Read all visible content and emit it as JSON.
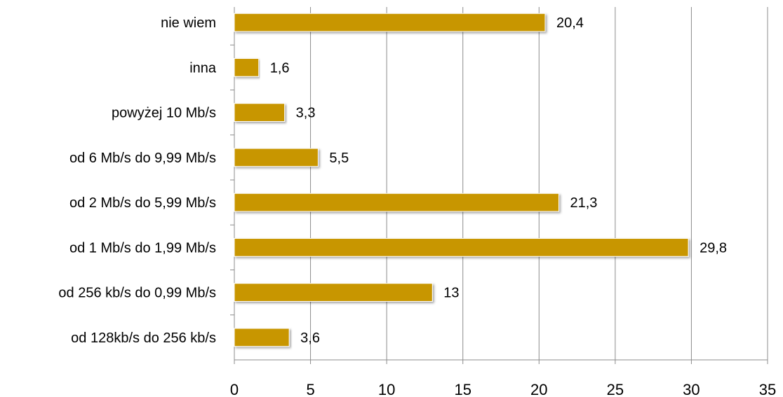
{
  "chart_data": {
    "type": "bar",
    "orientation": "horizontal",
    "categories": [
      "nie wiem",
      "inna",
      "powyżej 10 Mb/s",
      "od 6 Mb/s do 9,99 Mb/s",
      "od 2 Mb/s do 5,99 Mb/s",
      "od 1 Mb/s do 1,99 Mb/s",
      "od 256 kb/s do 0,99 Mb/s",
      "od 128kb/s do 256 kb/s"
    ],
    "values": [
      20.4,
      1.6,
      3.3,
      5.5,
      21.3,
      29.8,
      13,
      3.6
    ],
    "value_labels": [
      "20,4",
      "1,6",
      "3,3",
      "5,5",
      "21,3",
      "29,8",
      "13",
      "3,6"
    ],
    "xlim": [
      0,
      35
    ],
    "xticks": [
      0,
      5,
      10,
      15,
      20,
      25,
      30,
      35
    ],
    "xtick_labels": [
      "0",
      "5",
      "10",
      "15",
      "20",
      "25",
      "30",
      "35"
    ],
    "grid": "vertical",
    "legend": "none",
    "bar_color": "#c89600",
    "title": "",
    "xlabel": "",
    "ylabel": ""
  }
}
